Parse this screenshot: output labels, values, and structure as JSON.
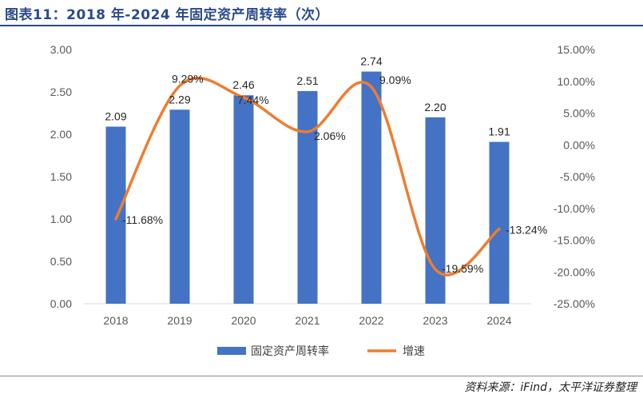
{
  "title": "图表11：2018 年-2024 年固定资产周转率（次）",
  "source": "资料来源：iFind，太平洋证券整理",
  "chart_data": {
    "type": "bar",
    "categories": [
      "2018",
      "2019",
      "2020",
      "2021",
      "2022",
      "2023",
      "2024"
    ],
    "series": [
      {
        "name": "固定资产周转率",
        "type": "bar",
        "axis": "left",
        "color": "#4472C4",
        "values": [
          2.09,
          2.29,
          2.46,
          2.51,
          2.74,
          2.2,
          1.91
        ],
        "labels": [
          "2.09",
          "2.29",
          "2.46",
          "2.51",
          "2.74",
          "2.20",
          "1.91"
        ]
      },
      {
        "name": "增速",
        "type": "line",
        "smooth": true,
        "axis": "right",
        "color": "#ED7D31",
        "values": [
          -11.68,
          9.29,
          7.44,
          2.06,
          9.09,
          -19.59,
          -13.24
        ],
        "labels": [
          "-11.68%",
          "9.29%",
          "7.44%",
          "2.06%",
          "9.09%",
          "-19.59%",
          "-13.24%"
        ]
      }
    ],
    "left_axis": {
      "ylim": [
        0,
        3
      ],
      "ticks": [
        0,
        0.5,
        1,
        1.5,
        2,
        2.5,
        3
      ],
      "tick_labels": [
        "0.00",
        "0.50",
        "1.00",
        "1.50",
        "2.00",
        "2.50",
        "3.00"
      ]
    },
    "right_axis": {
      "ylim": [
        -25,
        15
      ],
      "ticks": [
        -25,
        -20,
        -15,
        -10,
        -5,
        0,
        5,
        10,
        15
      ],
      "tick_labels": [
        "-25.00%",
        "-20.00%",
        "-15.00%",
        "-10.00%",
        "-5.00%",
        "0.00%",
        "5.00%",
        "10.00%",
        "15.00%"
      ]
    },
    "grid": false,
    "legend_position": "bottom"
  }
}
